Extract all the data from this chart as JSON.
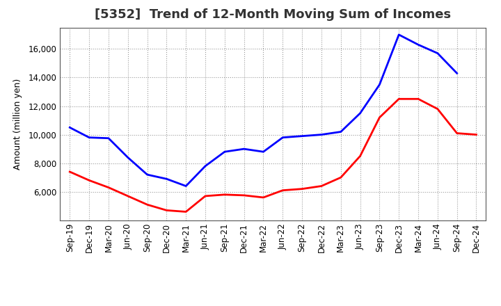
{
  "title": "[5352]  Trend of 12-Month Moving Sum of Incomes",
  "ylabel": "Amount (million yen)",
  "x_labels": [
    "Sep-19",
    "Dec-19",
    "Mar-20",
    "Jun-20",
    "Sep-20",
    "Dec-20",
    "Mar-21",
    "Jun-21",
    "Sep-21",
    "Dec-21",
    "Mar-22",
    "Jun-22",
    "Sep-22",
    "Dec-22",
    "Mar-23",
    "Jun-23",
    "Sep-23",
    "Dec-23",
    "Mar-24",
    "Jun-24",
    "Sep-24",
    "Dec-24"
  ],
  "ordinary_income": [
    10500,
    9800,
    9750,
    8400,
    7200,
    6900,
    6400,
    7800,
    8800,
    9000,
    8800,
    9800,
    9900,
    10000,
    10200,
    11500,
    13500,
    17000,
    16300,
    15700,
    14300,
    null
  ],
  "net_income": [
    7400,
    6800,
    6300,
    5700,
    5100,
    4700,
    4600,
    5700,
    5800,
    5750,
    5600,
    6100,
    6200,
    6400,
    7000,
    8500,
    11200,
    12500,
    12500,
    11800,
    10100,
    10000
  ],
  "ordinary_color": "#0000FF",
  "net_color": "#FF0000",
  "ylim_min": 4000,
  "ylim_max": 17500,
  "yticks": [
    6000,
    8000,
    10000,
    12000,
    14000,
    16000
  ],
  "background_color": "#FFFFFF",
  "plot_bg_color": "#FFFFFF",
  "grid_color": "#999999",
  "title_color": "#333333",
  "line_width": 2.0,
  "title_fontsize": 13,
  "label_fontsize": 9,
  "tick_fontsize": 8.5
}
